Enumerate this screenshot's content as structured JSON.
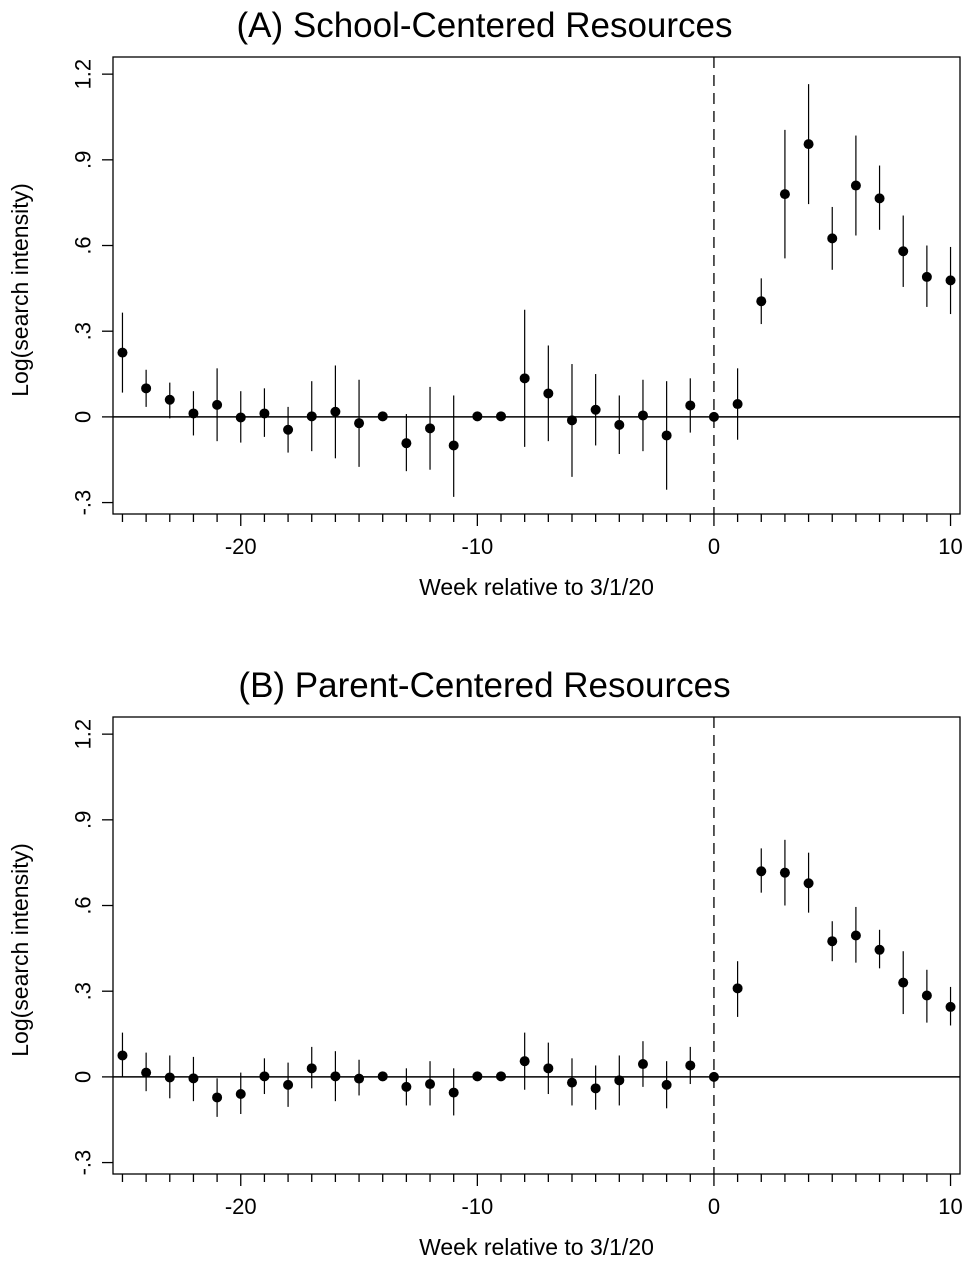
{
  "chart_data": [
    {
      "type": "scatter",
      "title": "(A) School-Centered Resources",
      "xlabel": "Week relative to 3/1/20",
      "ylabel": "Log(search intensity)",
      "xlim": [
        -25.4,
        10.4
      ],
      "ylim": [
        -0.34,
        1.26
      ],
      "xticks": [
        -20,
        -10,
        0,
        10
      ],
      "xtick_labels": [
        "-20",
        "-10",
        "0",
        "10"
      ],
      "xminor_ticks": [
        -25,
        -24,
        -23,
        -22,
        -21,
        -19,
        -18,
        -17,
        -16,
        -15,
        -14,
        -13,
        -12,
        -11,
        -9,
        -8,
        -7,
        -6,
        -5,
        -4,
        -3,
        -2,
        -1,
        1,
        2,
        3,
        4,
        5,
        6,
        7,
        8,
        9
      ],
      "yticks": [
        -0.3,
        0,
        0.3,
        0.6,
        0.9,
        1.2
      ],
      "ytick_labels": [
        "-.3",
        "0",
        ".3",
        ".6",
        ".9",
        "1.2"
      ],
      "reference_lines": {
        "y": 0,
        "x": 0,
        "x_style": "dashed"
      },
      "grid": false,
      "color": "#000000",
      "x": [
        -25,
        -24,
        -23,
        -22,
        -21,
        -20,
        -19,
        -18,
        -17,
        -16,
        -15,
        -14,
        -13,
        -12,
        -11,
        -10,
        -9,
        -8,
        -7,
        -6,
        -5,
        -4,
        -3,
        -2,
        -1,
        0,
        1,
        2,
        3,
        4,
        5,
        6,
        7,
        8,
        9,
        10
      ],
      "y": [
        0.225,
        0.1,
        0.06,
        0.012,
        0.042,
        -0.002,
        0.012,
        -0.045,
        0.002,
        0.018,
        -0.022,
        0.002,
        -0.092,
        -0.04,
        -0.1,
        0.002,
        0.002,
        0.135,
        0.082,
        -0.012,
        0.025,
        -0.028,
        0.005,
        -0.065,
        0.04,
        0.0,
        0.045,
        0.405,
        0.78,
        0.955,
        0.625,
        0.81,
        0.765,
        0.58,
        0.49,
        0.478
      ],
      "ci_low": [
        0.085,
        0.035,
        -0.005,
        -0.065,
        -0.085,
        -0.09,
        -0.07,
        -0.125,
        -0.12,
        -0.145,
        -0.175,
        null,
        -0.19,
        -0.185,
        -0.28,
        null,
        null,
        -0.105,
        -0.085,
        -0.21,
        -0.1,
        -0.13,
        -0.12,
        -0.255,
        -0.055,
        null,
        -0.08,
        0.325,
        0.555,
        0.745,
        0.515,
        0.635,
        0.655,
        0.455,
        0.385,
        0.36
      ],
      "ci_high": [
        0.365,
        0.165,
        0.12,
        0.09,
        0.17,
        0.09,
        0.1,
        0.035,
        0.125,
        0.18,
        0.13,
        null,
        0.01,
        0.105,
        0.075,
        null,
        null,
        0.375,
        0.25,
        0.185,
        0.15,
        0.075,
        0.13,
        0.125,
        0.135,
        null,
        0.17,
        0.485,
        1.005,
        1.165,
        0.735,
        0.985,
        0.88,
        0.705,
        0.6,
        0.595
      ]
    },
    {
      "type": "scatter",
      "title": "(B) Parent-Centered Resources",
      "xlabel": "Week relative to 3/1/20",
      "ylabel": "Log(search intensity)",
      "xlim": [
        -25.4,
        10.4
      ],
      "ylim": [
        -0.34,
        1.26
      ],
      "xticks": [
        -20,
        -10,
        0,
        10
      ],
      "xtick_labels": [
        "-20",
        "-10",
        "0",
        "10"
      ],
      "xminor_ticks": [
        -25,
        -24,
        -23,
        -22,
        -21,
        -19,
        -18,
        -17,
        -16,
        -15,
        -14,
        -13,
        -12,
        -11,
        -9,
        -8,
        -7,
        -6,
        -5,
        -4,
        -3,
        -2,
        -1,
        1,
        2,
        3,
        4,
        5,
        6,
        7,
        8,
        9
      ],
      "yticks": [
        -0.3,
        0,
        0.3,
        0.6,
        0.9,
        1.2
      ],
      "ytick_labels": [
        "-.3",
        "0",
        ".3",
        ".6",
        ".9",
        "1.2"
      ],
      "reference_lines": {
        "y": 0,
        "x": 0,
        "x_style": "dashed"
      },
      "grid": false,
      "color": "#000000",
      "x": [
        -25,
        -24,
        -23,
        -22,
        -21,
        -20,
        -19,
        -18,
        -17,
        -16,
        -15,
        -14,
        -13,
        -12,
        -11,
        -10,
        -9,
        -8,
        -7,
        -6,
        -5,
        -4,
        -3,
        -2,
        -1,
        0,
        1,
        2,
        3,
        4,
        5,
        6,
        7,
        8,
        9,
        10
      ],
      "y": [
        0.075,
        0.015,
        -0.002,
        -0.005,
        -0.072,
        -0.06,
        0.002,
        -0.028,
        0.03,
        0.002,
        -0.006,
        0.002,
        -0.035,
        -0.025,
        -0.055,
        0.002,
        0.002,
        0.055,
        0.03,
        -0.02,
        -0.04,
        -0.012,
        0.045,
        -0.028,
        0.04,
        0.0,
        0.31,
        0.72,
        0.715,
        0.678,
        0.475,
        0.495,
        0.445,
        0.33,
        0.285,
        0.245
      ],
      "ci_low": [
        0.0,
        -0.05,
        -0.075,
        -0.085,
        -0.14,
        -0.13,
        -0.06,
        -0.105,
        -0.04,
        -0.085,
        -0.065,
        null,
        -0.1,
        -0.1,
        -0.135,
        null,
        null,
        -0.045,
        -0.06,
        -0.1,
        -0.115,
        -0.1,
        -0.035,
        -0.11,
        -0.025,
        null,
        0.21,
        0.645,
        0.6,
        0.575,
        0.405,
        0.4,
        0.38,
        0.22,
        0.19,
        0.18
      ],
      "ci_high": [
        0.155,
        0.085,
        0.075,
        0.07,
        -0.005,
        0.015,
        0.065,
        0.05,
        0.105,
        0.09,
        0.06,
        null,
        0.03,
        0.055,
        0.03,
        null,
        null,
        0.155,
        0.12,
        0.065,
        0.04,
        0.075,
        0.125,
        0.055,
        0.105,
        null,
        0.405,
        0.8,
        0.83,
        0.785,
        0.545,
        0.595,
        0.515,
        0.44,
        0.375,
        0.315
      ]
    }
  ]
}
